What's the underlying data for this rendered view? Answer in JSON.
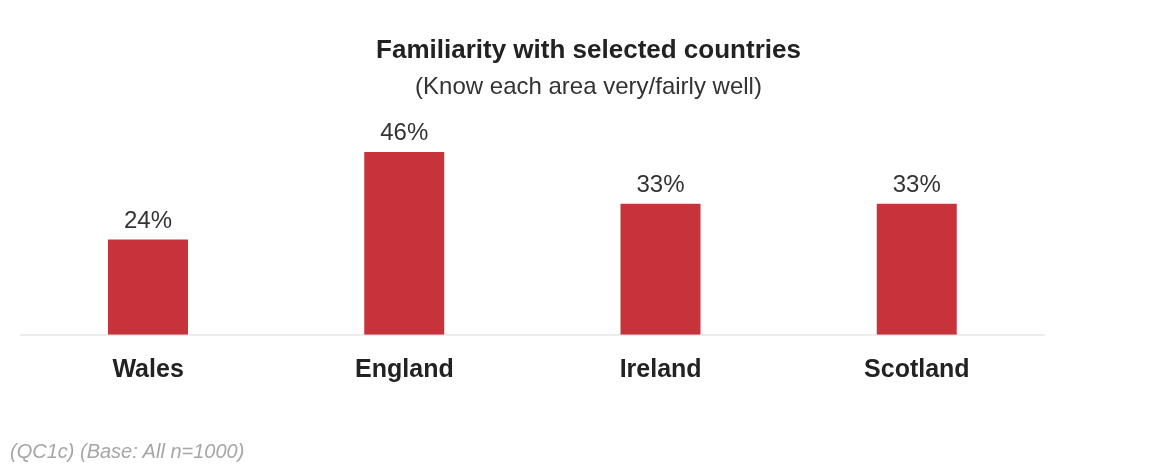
{
  "chart_data": {
    "type": "bar",
    "title": "Familiarity with selected countries",
    "subtitle": "(Know each area very/fairly well)",
    "categories": [
      "Wales",
      "England",
      "Ireland",
      "Scotland"
    ],
    "values": [
      24,
      46,
      33,
      33
    ],
    "color": "#c8323b",
    "value_labels": [
      "24%",
      "46%",
      "33%",
      "33%"
    ],
    "annotations": [
      "(QC1c) (Base: All n=1000)"
    ]
  }
}
